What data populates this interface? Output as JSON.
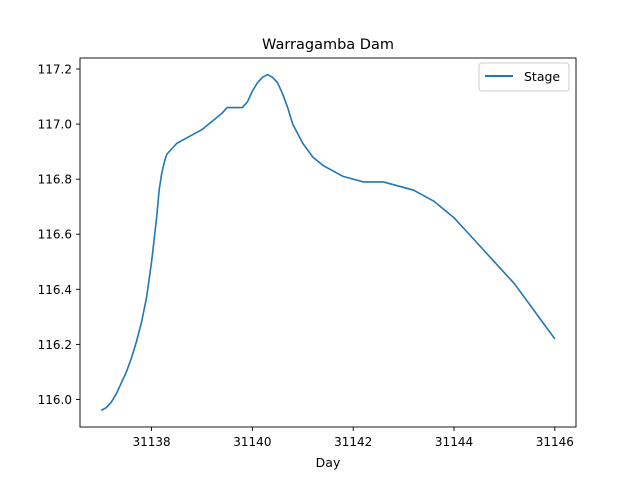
{
  "chart_data": {
    "type": "line",
    "title": "Warragamba Dam",
    "xlabel": "Day",
    "ylabel": "",
    "xlim": [
      31136.58,
      31146.42
    ],
    "ylim": [
      115.9,
      117.24
    ],
    "xticks": [
      31138,
      31140,
      31142,
      31144,
      31146
    ],
    "yticks": [
      116.0,
      116.2,
      116.4,
      116.6,
      116.8,
      117.0,
      117.2
    ],
    "grid": false,
    "legend_position": "top-right",
    "colors": {
      "series": "#1f77b4",
      "axes": "#000000",
      "background": "#ffffff"
    },
    "series": [
      {
        "name": "Stage",
        "x": [
          31137.0,
          31137.1,
          31137.2,
          31137.3,
          31137.4,
          31137.5,
          31137.6,
          31137.7,
          31137.8,
          31137.9,
          31138.0,
          31138.1,
          31138.15,
          31138.2,
          31138.25,
          31138.3,
          31138.4,
          31138.5,
          31138.6,
          31138.8,
          31139.0,
          31139.2,
          31139.4,
          31139.5,
          31139.7,
          31139.8,
          31139.9,
          31140.0,
          31140.1,
          31140.2,
          31140.3,
          31140.4,
          31140.5,
          31140.6,
          31140.7,
          31140.8,
          31141.0,
          31141.2,
          31141.4,
          31141.6,
          31141.8,
          31142.0,
          31142.2,
          31142.4,
          31142.6,
          31142.8,
          31143.0,
          31143.2,
          31143.4,
          31143.6,
          31143.8,
          31144.0,
          31144.2,
          31144.4,
          31144.6,
          31144.8,
          31145.0,
          31145.2,
          31145.4,
          31145.6,
          31145.8,
          31146.0
        ],
        "y": [
          115.96,
          115.97,
          115.99,
          116.02,
          116.06,
          116.1,
          116.15,
          116.21,
          116.28,
          116.37,
          116.5,
          116.66,
          116.76,
          116.82,
          116.86,
          116.89,
          116.91,
          116.93,
          116.94,
          116.96,
          116.98,
          117.01,
          117.04,
          117.06,
          117.06,
          117.06,
          117.08,
          117.12,
          117.15,
          117.17,
          117.18,
          117.17,
          117.15,
          117.11,
          117.06,
          117.0,
          116.93,
          116.88,
          116.85,
          116.83,
          116.81,
          116.8,
          116.79,
          116.79,
          116.79,
          116.78,
          116.77,
          116.76,
          116.74,
          116.72,
          116.69,
          116.66,
          116.62,
          116.58,
          116.54,
          116.5,
          116.46,
          116.42,
          116.37,
          116.32,
          116.27,
          116.22
        ]
      }
    ]
  }
}
